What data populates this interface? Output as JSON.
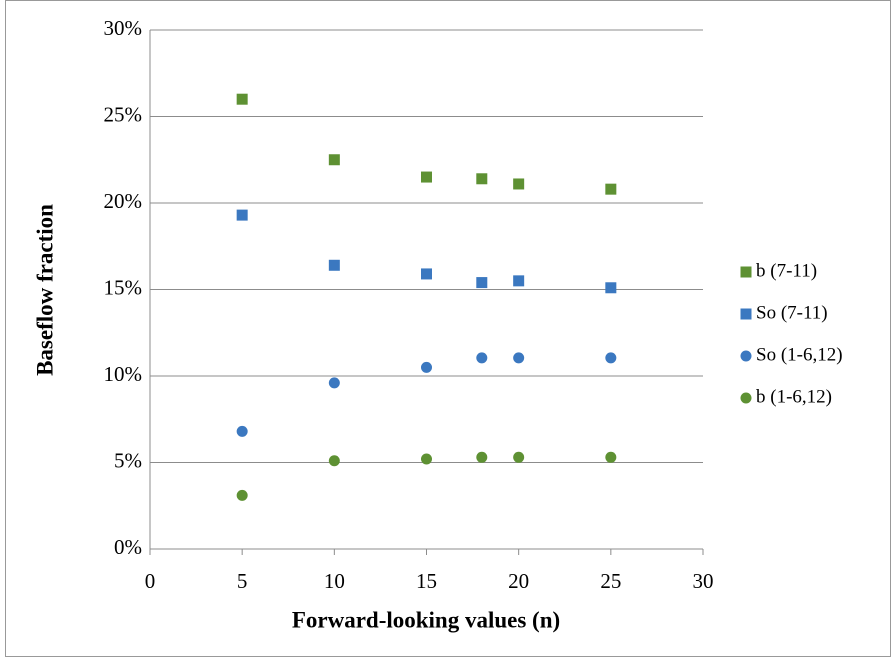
{
  "chart_data": {
    "type": "scatter",
    "xlabel": "Forward-looking values (n)",
    "ylabel": "Baseflow fraction",
    "xlim": [
      0,
      30
    ],
    "xticks": [
      0,
      5,
      10,
      15,
      20,
      25,
      30
    ],
    "ylim": [
      0,
      30
    ],
    "yticks": [
      {
        "value": 0,
        "label": "0%"
      },
      {
        "value": 5,
        "label": "5%"
      },
      {
        "value": 10,
        "label": "10%"
      },
      {
        "value": 15,
        "label": "15%"
      },
      {
        "value": 20,
        "label": "20%"
      },
      {
        "value": 25,
        "label": "25%"
      },
      {
        "value": 30,
        "label": "30%"
      }
    ],
    "grid": true,
    "legend": "right",
    "series": [
      {
        "name": "b (7-11)",
        "color": "#5e9133",
        "marker": "square",
        "x": [
          5,
          10,
          15,
          18,
          20,
          25
        ],
        "values": [
          26.0,
          22.5,
          21.5,
          21.4,
          21.1,
          20.8
        ]
      },
      {
        "name": "So (7-11)",
        "color": "#3b78c0",
        "marker": "square",
        "x": [
          5,
          10,
          15,
          18,
          20,
          25
        ],
        "values": [
          19.3,
          16.4,
          15.9,
          15.4,
          15.5,
          15.1
        ]
      },
      {
        "name": "So (1-6,12)",
        "color": "#3b78c0",
        "marker": "circle",
        "x": [
          5,
          10,
          15,
          18,
          20,
          25
        ],
        "values": [
          6.8,
          9.6,
          10.5,
          11.05,
          11.05,
          11.05
        ]
      },
      {
        "name": "b (1-6,12)",
        "color": "#5e9133",
        "marker": "circle",
        "x": [
          5,
          10,
          15,
          18,
          20,
          25
        ],
        "values": [
          3.1,
          5.1,
          5.2,
          5.3,
          5.3,
          5.3
        ]
      }
    ]
  }
}
